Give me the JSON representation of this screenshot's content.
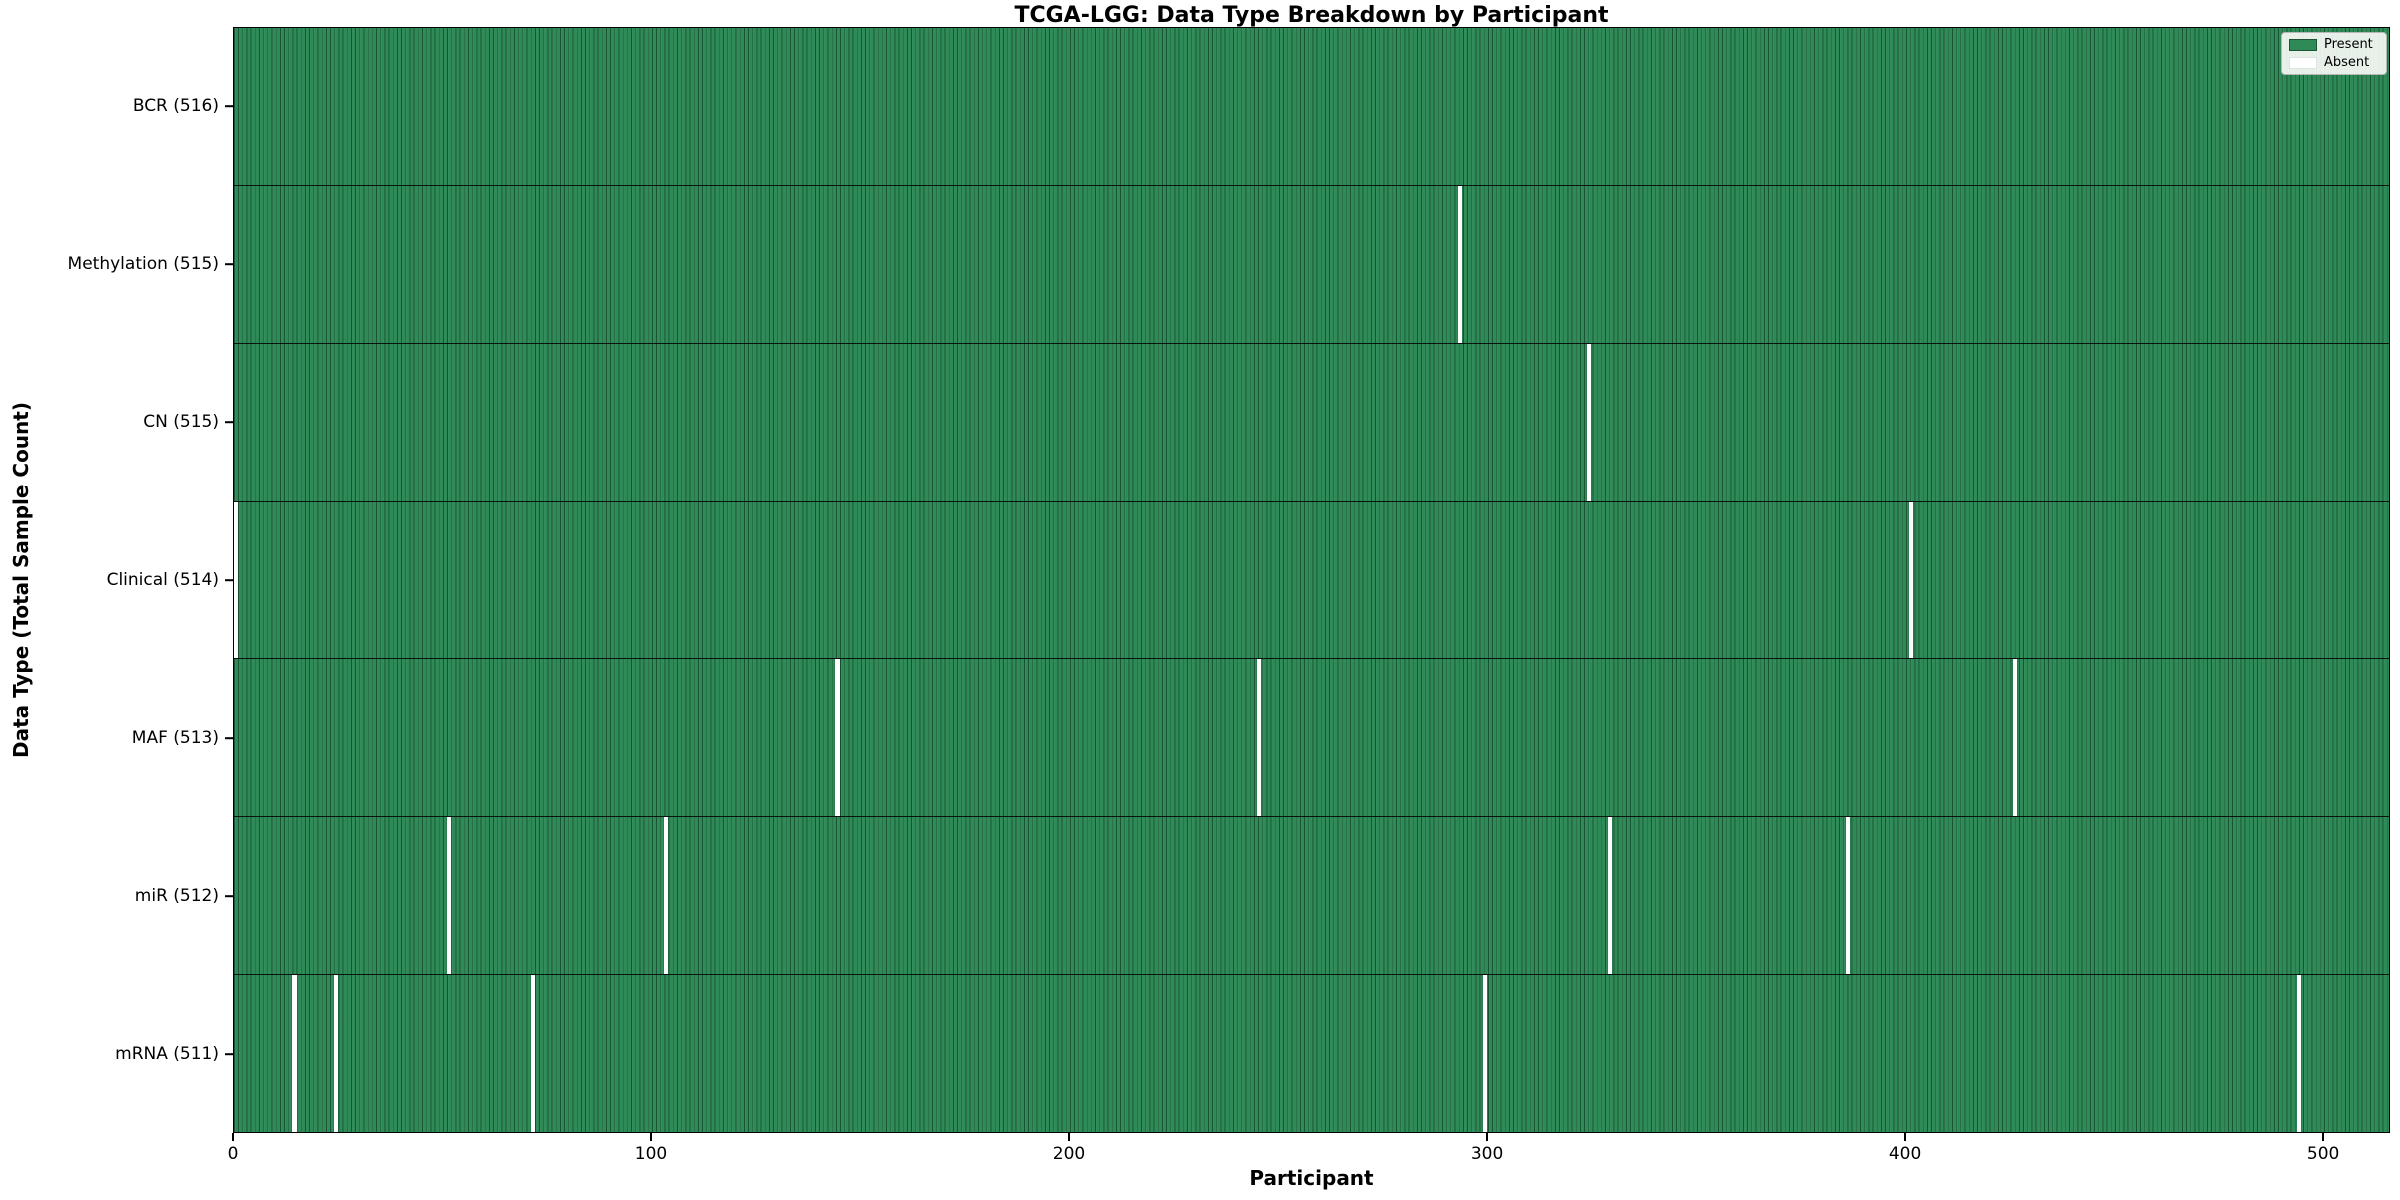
{
  "title": "TCGA-LGG: Data Type Breakdown by Participant",
  "x_axis_label": "Participant",
  "y_axis_label": "Data Type (Total Sample Count)",
  "legend": {
    "present_label": "Present",
    "absent_label": "Absent"
  },
  "colors": {
    "present": "#2e8b57",
    "absent": "#ffffff",
    "bar_edge": "#0c2a1a",
    "figure_bg": "#ffffff"
  },
  "chart_data": {
    "type": "heatmap",
    "title": "TCGA-LGG: Data Type Breakdown by Participant",
    "xlabel": "Participant",
    "ylabel": "Data Type (Total Sample Count)",
    "legend_entries": [
      "Present",
      "Absent"
    ],
    "legend_position": "upper right",
    "n_participants": 516,
    "x_ticks": [
      0,
      100,
      200,
      300,
      400,
      500
    ],
    "xlim": [
      0,
      516
    ],
    "grid": false,
    "rows": [
      {
        "label": "BCR (516)",
        "data_type": "BCR",
        "total_sample_count": 516,
        "absent_participants": []
      },
      {
        "label": "Methylation (515)",
        "data_type": "Methylation",
        "total_sample_count": 515,
        "absent_participants": [
          293
        ]
      },
      {
        "label": "CN (515)",
        "data_type": "CN",
        "total_sample_count": 515,
        "absent_participants": [
          324
        ]
      },
      {
        "label": "Clinical (514)",
        "data_type": "Clinical",
        "total_sample_count": 514,
        "absent_participants": [
          0,
          401
        ]
      },
      {
        "label": "MAF (513)",
        "data_type": "MAF",
        "total_sample_count": 513,
        "absent_participants": [
          144,
          245,
          426
        ]
      },
      {
        "label": "miR (512)",
        "data_type": "miR",
        "total_sample_count": 512,
        "absent_participants": [
          51,
          103,
          329,
          386
        ]
      },
      {
        "label": "mRNA (511)",
        "data_type": "mRNA",
        "total_sample_count": 511,
        "absent_participants": [
          14,
          24,
          71,
          299,
          494
        ]
      }
    ]
  }
}
